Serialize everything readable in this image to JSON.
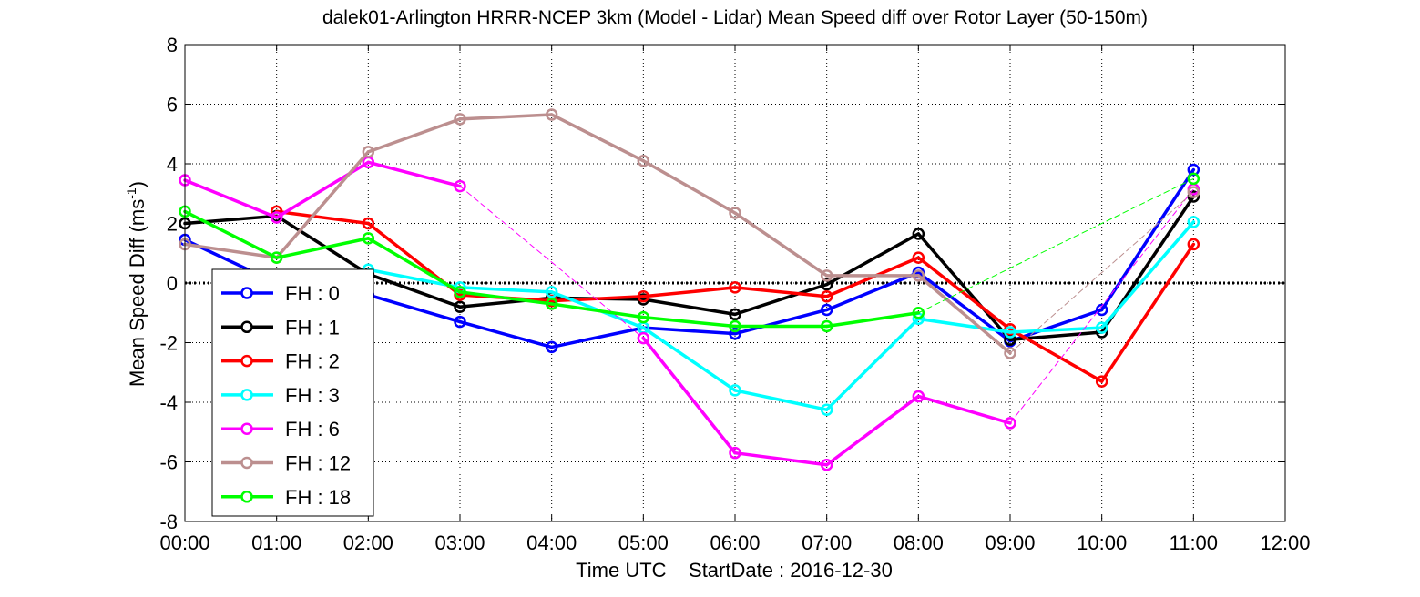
{
  "chart_data": {
    "type": "line",
    "title": "dalek01-Arlington HRRR-NCEP 3km (Model - Lidar) Mean Speed diff over Rotor Layer (50-150m)",
    "xlabel": "Time UTC    StartDate : 2016-12-30",
    "ylabel_main": "Mean Speed Diff (ms",
    "ylabel_sup": "-1",
    "ylabel_end": ")",
    "x_ticks": [
      "00:00",
      "01:00",
      "02:00",
      "03:00",
      "04:00",
      "05:00",
      "06:00",
      "07:00",
      "08:00",
      "09:00",
      "10:00",
      "11:00",
      "12:00"
    ],
    "xlim": [
      0,
      12
    ],
    "y_ticks": [
      "-8",
      "-6",
      "-4",
      "-2",
      "0",
      "2",
      "4",
      "6",
      "8"
    ],
    "ylim": [
      -8,
      8
    ],
    "grid": true,
    "legend_position": "bottom-left",
    "series": [
      {
        "name": "FH : 0",
        "color": "#0000ff",
        "x": [
          0,
          1,
          2,
          3,
          4,
          5,
          6,
          7,
          8,
          9,
          10,
          11
        ],
        "values": [
          1.45,
          0.0,
          -0.4,
          -1.3,
          -2.15,
          -1.5,
          -1.7,
          -0.9,
          0.35,
          -1.95,
          -0.9,
          3.8
        ]
      },
      {
        "name": "FH : 1",
        "color": "#000000",
        "x": [
          0,
          1,
          2,
          3,
          4,
          5,
          6,
          7,
          8,
          9,
          10,
          11
        ],
        "values": [
          2.0,
          2.25,
          0.3,
          -0.8,
          -0.5,
          -0.55,
          -1.05,
          -0.05,
          1.65,
          -1.9,
          -1.65,
          2.9
        ]
      },
      {
        "name": "FH : 2",
        "color": "#ff0000",
        "x": [
          1,
          2,
          3,
          4,
          5,
          6,
          7,
          8,
          9,
          10,
          11
        ],
        "values": [
          2.4,
          2.0,
          -0.4,
          -0.6,
          -0.45,
          -0.15,
          -0.45,
          0.85,
          -1.55,
          -3.3,
          1.3
        ]
      },
      {
        "name": "FH : 3",
        "color": "#00ffff",
        "x": [
          2,
          3,
          4,
          5,
          6,
          7,
          8,
          9,
          10,
          11
        ],
        "values": [
          0.45,
          -0.15,
          -0.3,
          -1.5,
          -3.6,
          -4.25,
          -1.2,
          -1.65,
          -1.5,
          2.05
        ]
      },
      {
        "name": "FH : 6",
        "color": "#ff00ff",
        "x": [
          0,
          1,
          2,
          3,
          5,
          6,
          7,
          8,
          9,
          11
        ],
        "values": [
          3.45,
          2.2,
          4.05,
          3.25,
          -1.85,
          -5.7,
          -6.1,
          -3.8,
          -4.7,
          3.15
        ]
      },
      {
        "name": "FH : 12",
        "color": "#bc8f8f",
        "x": [
          0,
          1,
          2,
          3,
          4,
          5,
          6,
          7,
          8,
          9,
          11
        ],
        "values": [
          1.3,
          0.85,
          4.4,
          5.5,
          5.65,
          4.1,
          2.35,
          0.25,
          0.25,
          -2.35,
          3.05
        ]
      },
      {
        "name": "FH : 18",
        "color": "#00ff00",
        "x": [
          0,
          1,
          2,
          3,
          4,
          5,
          6,
          7,
          8,
          11
        ],
        "values": [
          2.4,
          0.85,
          1.5,
          -0.3,
          -0.7,
          -1.15,
          -1.45,
          -1.45,
          -1.0,
          3.5
        ]
      }
    ]
  }
}
